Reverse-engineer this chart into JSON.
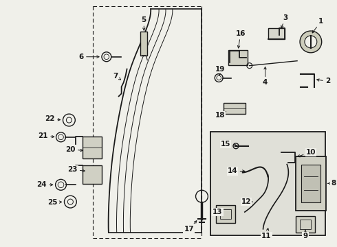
{
  "bg_color": "#f0f0ea",
  "line_color": "#1a1a1a",
  "box_bg": "#e0e0d8",
  "figsize": [
    4.9,
    3.6
  ],
  "dpi": 100
}
